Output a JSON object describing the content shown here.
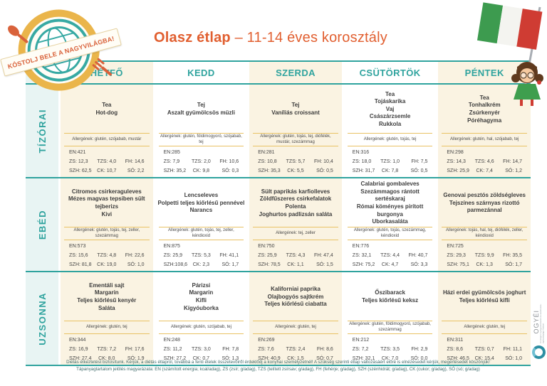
{
  "page": {
    "stamp_text": "KÓSTOLJ BELE A NAGYVILÁGBA!",
    "title": {
      "bold": "Olasz étlap",
      "rest": " – 11-14 éves korosztály"
    }
  },
  "days": [
    "HÉTFŐ",
    "KEDD",
    "SZERDA",
    "CSÜTÖRTÖK",
    "PÉNTEK"
  ],
  "meals": [
    {
      "label": "TÍZÓRAI",
      "cells": [
        {
          "items": [
            "Tea",
            "Hot-dog"
          ],
          "allergens": "Allergének: glutén, szójabab, mustár",
          "nut": {
            "en": "EN:421",
            "zs": "ZS: 12,3",
            "tzs": "TZS: 4,0",
            "fh": "FH: 14,6",
            "szh": "SZH: 62,5",
            "ck": "CK: 10,7",
            "so": "SÓ: 2,2"
          }
        },
        {
          "items": [
            "Tej",
            "Aszalt gyümölcsös müzli"
          ],
          "allergens": "Allergének: glutén, földimogyoró, szójabab, tej",
          "nut": {
            "en": "EN:285",
            "zs": "ZS: 7,9",
            "tzs": "TZS: 2,0",
            "fh": "FH: 10,6",
            "szh": "SZH: 35,2",
            "ck": "CK: 9,8",
            "so": "SÓ: 0,3"
          }
        },
        {
          "items": [
            "Tej",
            "Vaníliás croissant"
          ],
          "allergens": "Allergének: glutén, tojás, tej, diófélék, mustár, szezámmag",
          "nut": {
            "en": "EN:281",
            "zs": "ZS: 10,8",
            "tzs": "TZS: 5,7",
            "fh": "FH: 10,4",
            "szh": "SZH: 35,3",
            "ck": "CK: 5,5",
            "so": "SÓ: 0,5"
          }
        },
        {
          "items": [
            "Tea",
            "Tojáskarika",
            "Vaj",
            "Császárzsemle",
            "Rukkola"
          ],
          "allergens": "Allergének: glutén, tojás, tej",
          "nut": {
            "en": "EN:316",
            "zs": "ZS: 18,0",
            "tzs": "TZS: 1,0",
            "fh": "FH: 7,5",
            "szh": "SZH: 31,7",
            "ck": "CK: 7,8",
            "so": "SÓ: 0,5"
          }
        },
        {
          "items": [
            "Tea",
            "Tonhalkrém",
            "Zsúrkenyér",
            "Póréhagyma"
          ],
          "allergens": "Allergének: glutén, hal, szójabab, tej",
          "nut": {
            "en": "EN:298",
            "zs": "ZS: 14,3",
            "tzs": "TZS: 4,6",
            "fh": "FH: 14,7",
            "szh": "SZH: 25,9",
            "ck": "CK: 7,4",
            "so": "SÓ: 1,2"
          }
        }
      ]
    },
    {
      "label": "EBÉD",
      "cells": [
        {
          "items": [
            "Citromos csirkeraguleves",
            "Mézes magvas tepsiben sült tejberizs",
            "Kivi"
          ],
          "allergens": "Allergének: glutén, tojás, tej, zeller, szezámmag",
          "nut": {
            "en": "EN:573",
            "zs": "ZS: 15,6",
            "tzs": "TZS: 4,8",
            "fh": "FH: 22,6",
            "szh": "SZH: 81,8",
            "ck": "CK: 19,0",
            "so": "SÓ: 1,0"
          }
        },
        {
          "items": [
            "Lencseleves",
            "Polpetti teljes kiőrlésű pennével",
            "Narancs"
          ],
          "allergens": "Allergének: glutén, tojás, tej, zeller, kéndioxid",
          "nut": {
            "en": "EN:875",
            "zs": "ZS: 25,9",
            "tzs": "TZS: 5,3",
            "fh": "FH: 41,1",
            "szh": "SZH:108,6",
            "ck": "CK: 2,3",
            "so": "SÓ: 1,7"
          }
        },
        {
          "items": [
            "Sült paprikás karfiolleves",
            "Zöldfűszeres csirkefalatok",
            "Polenta",
            "Joghurtos padlizsán saláta"
          ],
          "allergens": "Allergének: tej, zeller",
          "nut": {
            "en": "EN:750",
            "zs": "ZS: 25,9",
            "tzs": "TZS: 4,3",
            "fh": "FH: 47,4",
            "szh": "SZH: 78,5",
            "ck": "CK: 1,1",
            "so": "SÓ: 1,5"
          }
        },
        {
          "items": [
            "Calabriai gombaleves",
            "Szezámmagos rántott sertéskaraj",
            "Római köményes pirított burgonya",
            "Uborkasaláta"
          ],
          "allergens": "Allergének: glutén, tojás, szezámmag, kéndioxid",
          "nut": {
            "en": "EN:776",
            "zs": "ZS: 32,1",
            "tzs": "TZS: 4,4",
            "fh": "FH: 40,7",
            "szh": "SZH: 75,2",
            "ck": "CK: 4,7",
            "so": "SÓ: 3,3"
          }
        },
        {
          "items": [
            "Genovai pesztós zöldségleves",
            "Tejszínes szárnyas rizottó parmezánnal"
          ],
          "allergens": "Allergének: tojás, hal, tej, diófélék, zeller, kéndioxid",
          "nut": {
            "en": "EN:725",
            "zs": "ZS: 29,3",
            "tzs": "TZS: 9,9",
            "fh": "FH: 35,5",
            "szh": "SZH: 75,1",
            "ck": "CK: 1,3",
            "so": "SÓ: 1,7"
          }
        }
      ]
    },
    {
      "label": "UZSONNA",
      "cells": [
        {
          "items": [
            "Ementáli sajt",
            "Margarin",
            "Teljes kiőrlésű kenyér",
            "Saláta"
          ],
          "allergens": "Allergének: glutén, tej",
          "nut": {
            "en": "EN:344",
            "zs": "ZS: 16,9",
            "tzs": "TZS: 7,2",
            "fh": "FH: 17,6",
            "szh": "SZH: 27,4",
            "ck": "CK: 8,0",
            "so": "SÓ: 1,9"
          }
        },
        {
          "items": [
            "Párizsi",
            "Margarin",
            "Kifli",
            "Kígyóuborka"
          ],
          "allergens": "Allergének: glutén, szójabab, tej",
          "nut": {
            "en": "EN:248",
            "zs": "ZS: 11,2",
            "tzs": "TZS: 3,0",
            "fh": "FH: 7,8",
            "szh": "SZH: 27,2",
            "ck": "CK: 0,7",
            "so": "SÓ: 1,3"
          }
        },
        {
          "items": [
            "Kaliforniai paprika",
            "Olajbogyós sajtkrém",
            "Teljes kiőrlésű ciabatta"
          ],
          "allergens": "Allergének: glutén, tej",
          "nut": {
            "en": "EN:269",
            "zs": "ZS: 7,6",
            "tzs": "TZS: 2,4",
            "fh": "FH: 8,6",
            "szh": "SZH: 40,9",
            "ck": "CK: 1,5",
            "so": "SÓ: 0,7"
          }
        },
        {
          "items": [
            "Őszibarack",
            "Teljes kiőrlésű keksz"
          ],
          "allergens": "Allergének: glutén, földimogyoró, szójabab, szezámmag",
          "nut": {
            "en": "EN:212",
            "zs": "ZS: 7,2",
            "tzs": "TZS: 3,5",
            "fh": "FH: 2,9",
            "szh": "SZH: 32,1",
            "ck": "CK: 7,0",
            "so": "SÓ: 0,0"
          }
        },
        {
          "items": [
            "Házi erdei gyümölcsös joghurt",
            "Teljes kiőrlésű kifli"
          ],
          "allergens": "Allergének: glutén, tej",
          "nut": {
            "en": "EN:311",
            "zs": "ZS: 8,6",
            "tzs": "TZS: 0,7",
            "fh": "FH: 11,1",
            "szh": "SZH: 46,5",
            "ck": "CK: 15,4",
            "so": "SÓ: 1,0"
          }
        }
      ]
    }
  ],
  "footer": {
    "line1": "Diétás étkeztetést biztosítunk. Kérjük, a diétás étlapról, továbbá a fenti ételek összetevőiről érdeklődj a konyhai személyzetnél! A szükség szerinti étlap változásáért előre is elnézésedet kérjük, megértésedet köszönjük!",
    "line2": "Tápanyagtartalom jelölés magyarázata: EN (számított energia; kcal/adag), ZS (zsír; g/adag), TZS (telített zsírsav; g/adag), FH (fehérje; g/adag), SZH (szénhidrát; g/adag), CK (cukor; g/adag), SÓ (só; g/adag)"
  },
  "ogyei": {
    "name": "OGYÉI",
    "subtext": "Országos Gyógyszerészeti és Élelmezés-egészségügyi Intézet"
  },
  "colors": {
    "teal": "#2fa39e",
    "orange": "#e15f30",
    "cream": "#faf3e2",
    "gold_line": "#e9c264",
    "label_bg": "#e8f4f3",
    "stamp_gold": "#eab54b",
    "flag_green": "#3d9b4f",
    "flag_red": "#cf3c33"
  }
}
